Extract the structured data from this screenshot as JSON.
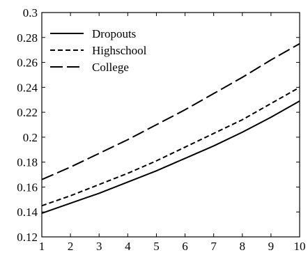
{
  "chart_data": {
    "type": "line",
    "title": "",
    "xlabel": "",
    "ylabel": "",
    "xlim": [
      1,
      10
    ],
    "ylim": [
      0.12,
      0.3
    ],
    "x_ticks": [
      1,
      2,
      3,
      4,
      5,
      6,
      7,
      8,
      9,
      10
    ],
    "y_ticks": [
      0.12,
      0.14,
      0.16,
      0.18,
      0.2,
      0.22,
      0.24,
      0.26,
      0.28,
      0.3
    ],
    "grid": false,
    "legend_position": "top-left",
    "x": [
      1,
      2,
      3,
      4,
      5,
      6,
      7,
      8,
      9,
      10
    ],
    "series": [
      {
        "name": "Dropouts",
        "style": "solid",
        "values": [
          0.139,
          0.147,
          0.155,
          0.164,
          0.173,
          0.183,
          0.193,
          0.204,
          0.216,
          0.229
        ]
      },
      {
        "name": "Highschool",
        "style": "dashed",
        "values": [
          0.145,
          0.153,
          0.162,
          0.171,
          0.181,
          0.192,
          0.203,
          0.214,
          0.227,
          0.24
        ]
      },
      {
        "name": "College",
        "style": "long-dashed",
        "values": [
          0.166,
          0.176,
          0.187,
          0.198,
          0.21,
          0.222,
          0.235,
          0.248,
          0.262,
          0.275
        ]
      }
    ]
  }
}
